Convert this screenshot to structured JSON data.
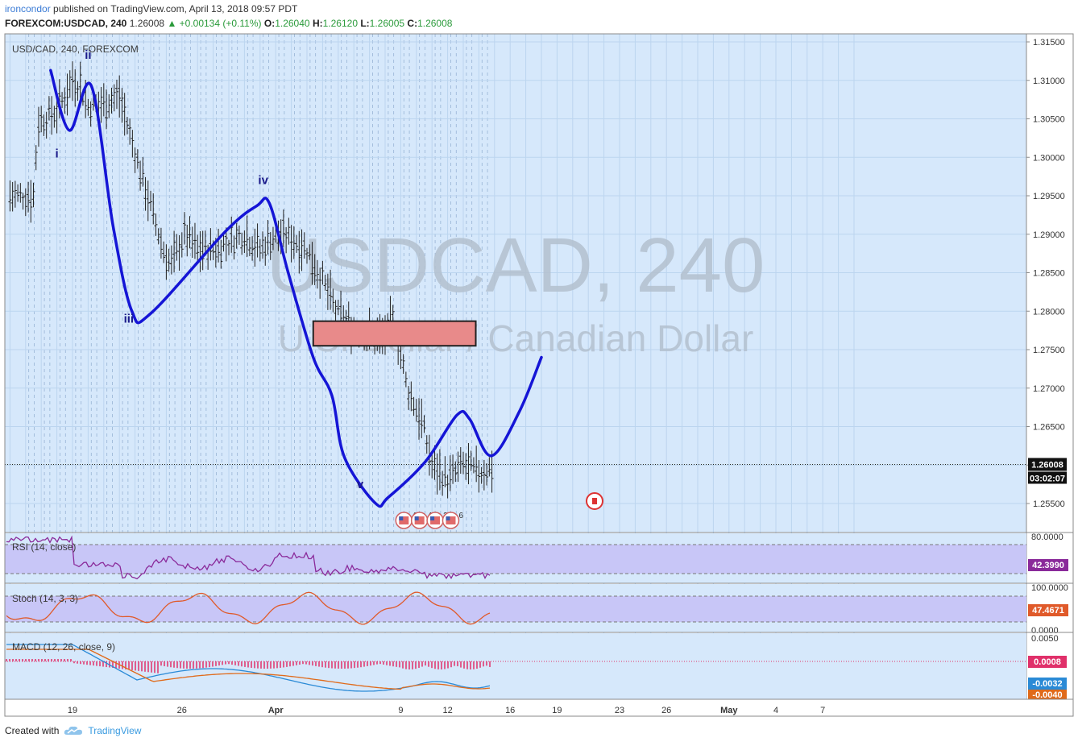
{
  "header": {
    "user": "ironcondor",
    "published": "published on TradingView.com, April 13, 2018 09:57 PDT",
    "symbol": "FOREXCOM:USDCAD, 240",
    "last": "1.26008",
    "change": "▲ +0.00134 (+0.11%)",
    "o_label": "O:",
    "o": "1.26040",
    "h_label": "H:",
    "h": "1.26120",
    "l_label": "L:",
    "l": "1.26005",
    "c_label": "C:",
    "c": "1.26008"
  },
  "footer": {
    "created": "Created with",
    "brand": "TradingView"
  },
  "colors": {
    "background": "#d6e8fb",
    "path": "#1515d6",
    "zone_fill": "#e88a8a",
    "zone_stroke": "#222222",
    "indicator_band": "#c8c6f7"
  },
  "chart_data": {
    "type": "line",
    "title": "USD/CAD, 240, FOREXCOM",
    "watermark": "USDCAD, 240",
    "watermark_sub": "U.S. Dollar / Canadian Dollar",
    "ylim": [
      1.2525,
      1.3165
    ],
    "y_ticks": [
      1.315,
      1.31,
      1.305,
      1.3,
      1.295,
      1.29,
      1.285,
      1.28,
      1.275,
      1.27,
      1.265,
      1.26,
      1.255
    ],
    "y_tick_labels": [
      "1.31500",
      "1.31000",
      "1.30500",
      "1.30000",
      "1.29500",
      "1.29000",
      "1.28500",
      "1.28000",
      "1.27500",
      "1.27000",
      "1.26500",
      "1.26000",
      "1.25500"
    ],
    "x_ticks": [
      "19",
      "26",
      "Apr",
      "9",
      "12",
      "16",
      "19",
      "23",
      "26",
      "May",
      "4",
      "7"
    ],
    "price_label": "1.26008",
    "countdown": "03:02:07",
    "last_price": 1.26008,
    "wave_path": [
      [
        0,
        1.3113
      ],
      [
        6,
        1.3035
      ],
      [
        13,
        1.3093
      ],
      [
        20,
        1.291
      ],
      [
        26,
        1.28
      ],
      [
        32,
        1.2797
      ],
      [
        56,
        1.2904
      ],
      [
        66,
        1.2937
      ],
      [
        70,
        1.294
      ],
      [
        76,
        1.285
      ],
      [
        84,
        1.274
      ],
      [
        90,
        1.269
      ],
      [
        94,
        1.261
      ],
      [
        104,
        1.255
      ],
      [
        108,
        1.2558
      ],
      [
        120,
        1.2605
      ],
      [
        130,
        1.2665
      ],
      [
        134,
        1.266
      ],
      [
        141,
        1.2612
      ],
      [
        150,
        1.267
      ],
      [
        157,
        1.274
      ]
    ],
    "resistance_zone": {
      "x0": 84,
      "x1": 136,
      "y0": 1.2787,
      "y1": 1.2755
    },
    "wave_labels": [
      {
        "text": "iv",
        "x": -32,
        "y": 1.291
      },
      {
        "text": "i",
        "x": 2,
        "y": 1.3
      },
      {
        "text": "ii",
        "x": 12,
        "y": 1.3128
      },
      {
        "text": "iii",
        "x": 25,
        "y": 1.2785
      },
      {
        "text": "iv",
        "x": 68,
        "y": 1.2965
      },
      {
        "text": "v",
        "x": 99,
        "y": 1.257
      }
    ],
    "event_icons": [
      {
        "x": 113,
        "count": "4"
      },
      {
        "x": 118,
        "count": "4"
      },
      {
        "x": 123,
        "count": "2"
      },
      {
        "x": 128,
        "count": "6"
      }
    ]
  },
  "indicators": {
    "rsi": {
      "label": "RSI (14, close)",
      "value": "42.3990",
      "axis": [
        "80.0000"
      ]
    },
    "stoch": {
      "label": "Stoch (14, 3, 3)",
      "value": "47.4671",
      "axis": [
        "100.0000",
        "0.0000"
      ]
    },
    "macd": {
      "label": "MACD (12, 26, close, 9)",
      "axis": [
        "0.0050"
      ],
      "hist_value": "0.0008",
      "macd_value": "-0.0032",
      "signal_value": "-0.0040"
    }
  }
}
